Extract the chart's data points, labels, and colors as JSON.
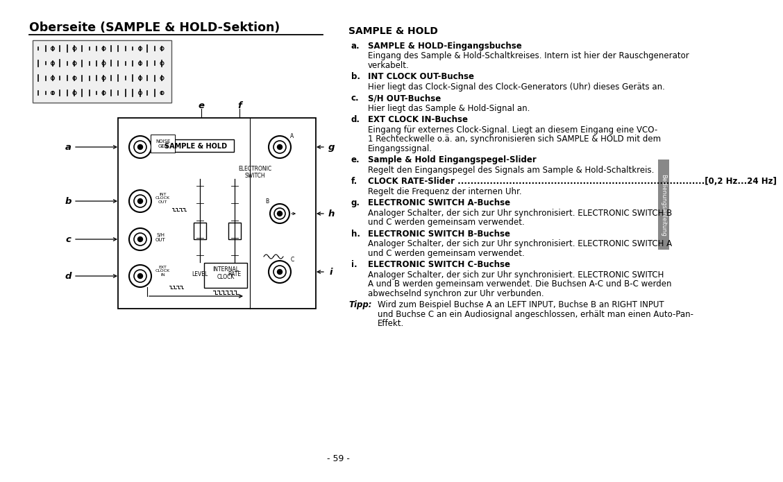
{
  "bg_color": "#ffffff",
  "page_number": "- 59 -",
  "title": "Oberseite (SAMPLE & HOLD-Sektion)",
  "section_header": "SAMPLE & HOLD",
  "right_tab_text": "Bedienungsanleitung",
  "items": [
    {
      "letter": "a.",
      "bold": "SAMPLE & HOLD-Eingangsbuchse",
      "text": "Eingang des Sample & Hold-Schaltkreises. Intern ist hier der Rauschgenerator\nverkabelt."
    },
    {
      "letter": "b.",
      "bold": "INT CLOCK OUT-Buchse",
      "text": "Hier liegt das Clock-Signal des Clock-Generators (Uhr) dieses Geräts an."
    },
    {
      "letter": "c.",
      "bold": "S/H OUT-Buchse",
      "text": "Hier liegt das Sample & Hold-Signal an."
    },
    {
      "letter": "d.",
      "bold": "EXT CLOCK IN-Buchse",
      "text": "Eingang für externes Clock-Signal. Liegt an diesem Eingang eine VCO-\n1 Rechteckwelle o.ä. an, synchronisieren sich SAMPLE & HOLD mit dem\nEingangssignal."
    },
    {
      "letter": "e.",
      "bold": "Sample & Hold Eingangspegel-Slider",
      "text": "Regelt den Eingangspegel des Signals am Sample & Hold-Schaltkreis."
    },
    {
      "letter": "f.",
      "bold": "CLOCK RATE-Slider .............................................................................[0,2 Hz...24 Hz]",
      "text": "Regelt die Frequenz der internen Uhr."
    },
    {
      "letter": "g.",
      "bold": "ELECTRONIC SWITCH A-Buchse",
      "text": "Analoger Schalter, der sich zur Uhr synchronisiert. ELECTRONIC SWITCH B\nund C werden gemeinsam verwendet."
    },
    {
      "letter": "h.",
      "bold": "ELECTRONIC SWITCH B-Buchse",
      "text": "Analoger Schalter, der sich zur Uhr synchronisiert. ELECTRONIC SWITCH A\nund C werden gemeinsam verwendet."
    },
    {
      "letter": "i.",
      "bold": "ELECTRONIC SWITCH C-Buchse",
      "text": "Analoger Schalter, der sich zur Uhr synchronisiert. ELECTRONIC SWITCH\nA und B werden gemeinsam verwendet. Die Buchsen A-C und B-C werden\nabwechselnd synchron zur Uhr verbunden."
    }
  ],
  "tipp_label": "Tipp:",
  "tipp_text": "Wird zum Beispiel Buchse A an LEFT INPUT, Buchse B an RIGHT INPUT\nund Buchse C an ein Audiosignal angeschlossen, erhält man einen Auto-Pan-\nEffekt."
}
